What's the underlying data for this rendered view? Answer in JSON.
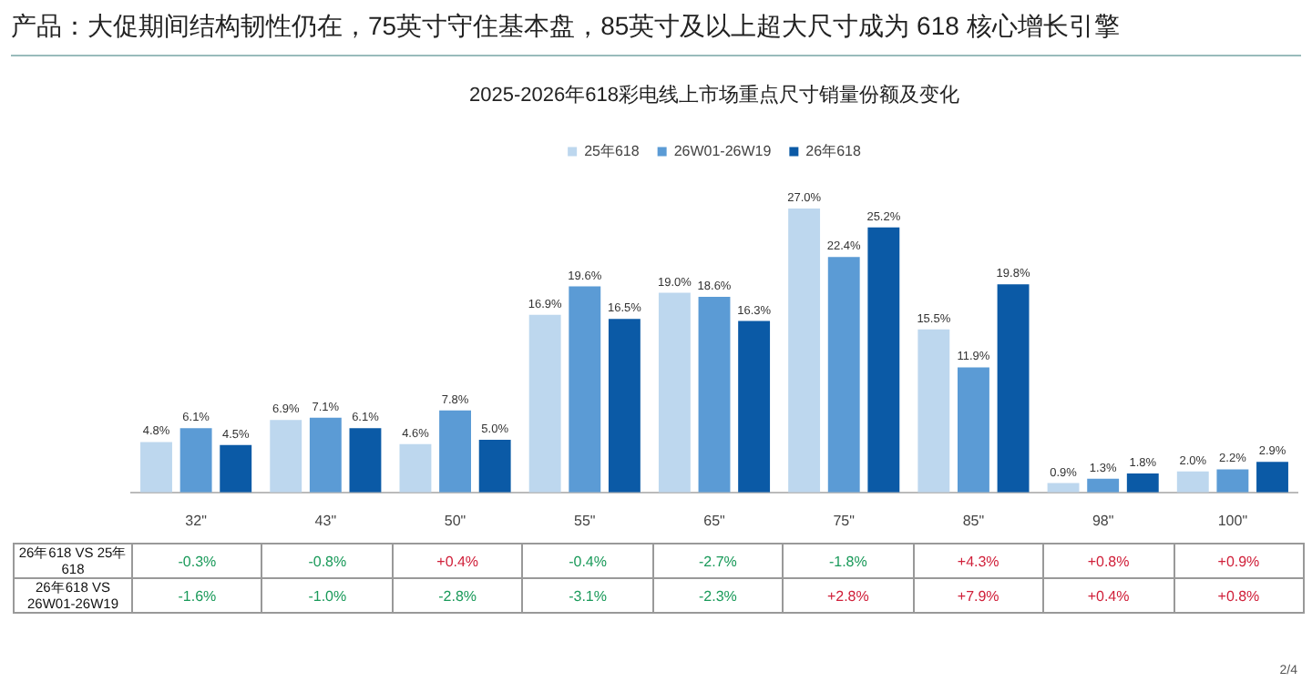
{
  "chart_data": {
    "type": "bar",
    "title": "产品：大促期间结构韧性仍在，75英寸守住基本盘，85英寸及以上超大尺寸成为 618 核心增长引擎",
    "subtitle": "2025-2026年618彩电线上市场重点尺寸销量份额及变化",
    "categories": [
      "32\"",
      "43\"",
      "50\"",
      "55\"",
      "65\"",
      "75\"",
      "85\"",
      "98\"",
      "100\""
    ],
    "series": [
      {
        "name": "25年618",
        "color": "#bdd7ee",
        "values": [
          4.8,
          6.9,
          4.6,
          16.9,
          19.0,
          27.0,
          15.5,
          0.9,
          2.0
        ],
        "value_labels": [
          "4.8%",
          "6.9%",
          "4.6%",
          "16.9%",
          "19.0%",
          "27.0%",
          "15.5%",
          "0.9%",
          "2.0%"
        ]
      },
      {
        "name": "26W01-26W19",
        "color": "#5b9bd5",
        "values": [
          6.1,
          7.1,
          7.8,
          19.6,
          18.6,
          22.4,
          11.9,
          1.3,
          2.2
        ],
        "value_labels": [
          "6.1%",
          "7.1%",
          "7.8%",
          "19.6%",
          "18.6%",
          "22.4%",
          "11.9%",
          "1.3%",
          "2.2%"
        ]
      },
      {
        "name": "26年618",
        "color": "#0b5aa6",
        "values": [
          4.5,
          6.1,
          5.0,
          16.5,
          16.3,
          25.2,
          19.8,
          1.8,
          2.9
        ],
        "value_labels": [
          "4.5%",
          "6.1%",
          "5.0%",
          "16.5%",
          "16.3%",
          "25.2%",
          "19.8%",
          "1.8%",
          "2.9%"
        ]
      }
    ],
    "legend": "top",
    "annotations": [
      "26年618 VS 25年618",
      "-0.3%",
      "-0.8%",
      "+0.4%",
      "-0.4%",
      "-2.7%",
      "-1.8%",
      "+4.3%",
      "+0.8%",
      "+0.9%",
      "26年618 VS 26W01-26W19",
      "-1.6%",
      "-1.0%",
      "-2.8%",
      "-3.1%",
      "-2.3%",
      "+2.8%",
      "+7.9%",
      "+0.4%",
      "+0.8%",
      "2/4"
    ]
  }
}
